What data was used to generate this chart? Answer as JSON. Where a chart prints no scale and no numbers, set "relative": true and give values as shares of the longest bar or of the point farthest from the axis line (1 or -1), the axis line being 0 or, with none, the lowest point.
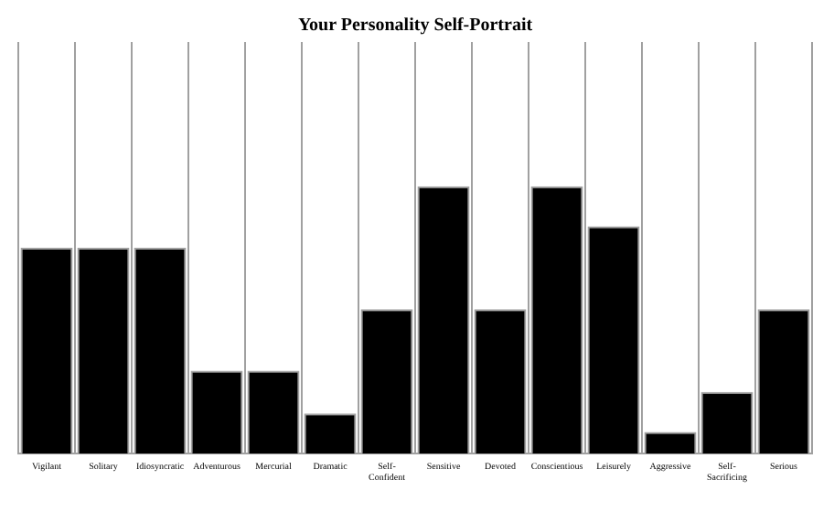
{
  "chart_data": {
    "type": "bar",
    "title": "Your Personality Self-Portrait",
    "relative": true,
    "color": "#000000",
    "categories": [
      "Vigilant",
      "Solitary",
      "Idiosyncratic",
      "Adventurous",
      "Mercurial",
      "Dramatic",
      "Self-Confident",
      "Sensitive",
      "Devoted",
      "Conscientious",
      "Leisurely",
      "Aggressive",
      "Self-Sacrificing",
      "Serious"
    ],
    "values": [
      0.77,
      0.77,
      0.77,
      0.31,
      0.31,
      0.15,
      0.54,
      1,
      0.54,
      1,
      0.85,
      0.08,
      0.23,
      0.54
    ]
  }
}
